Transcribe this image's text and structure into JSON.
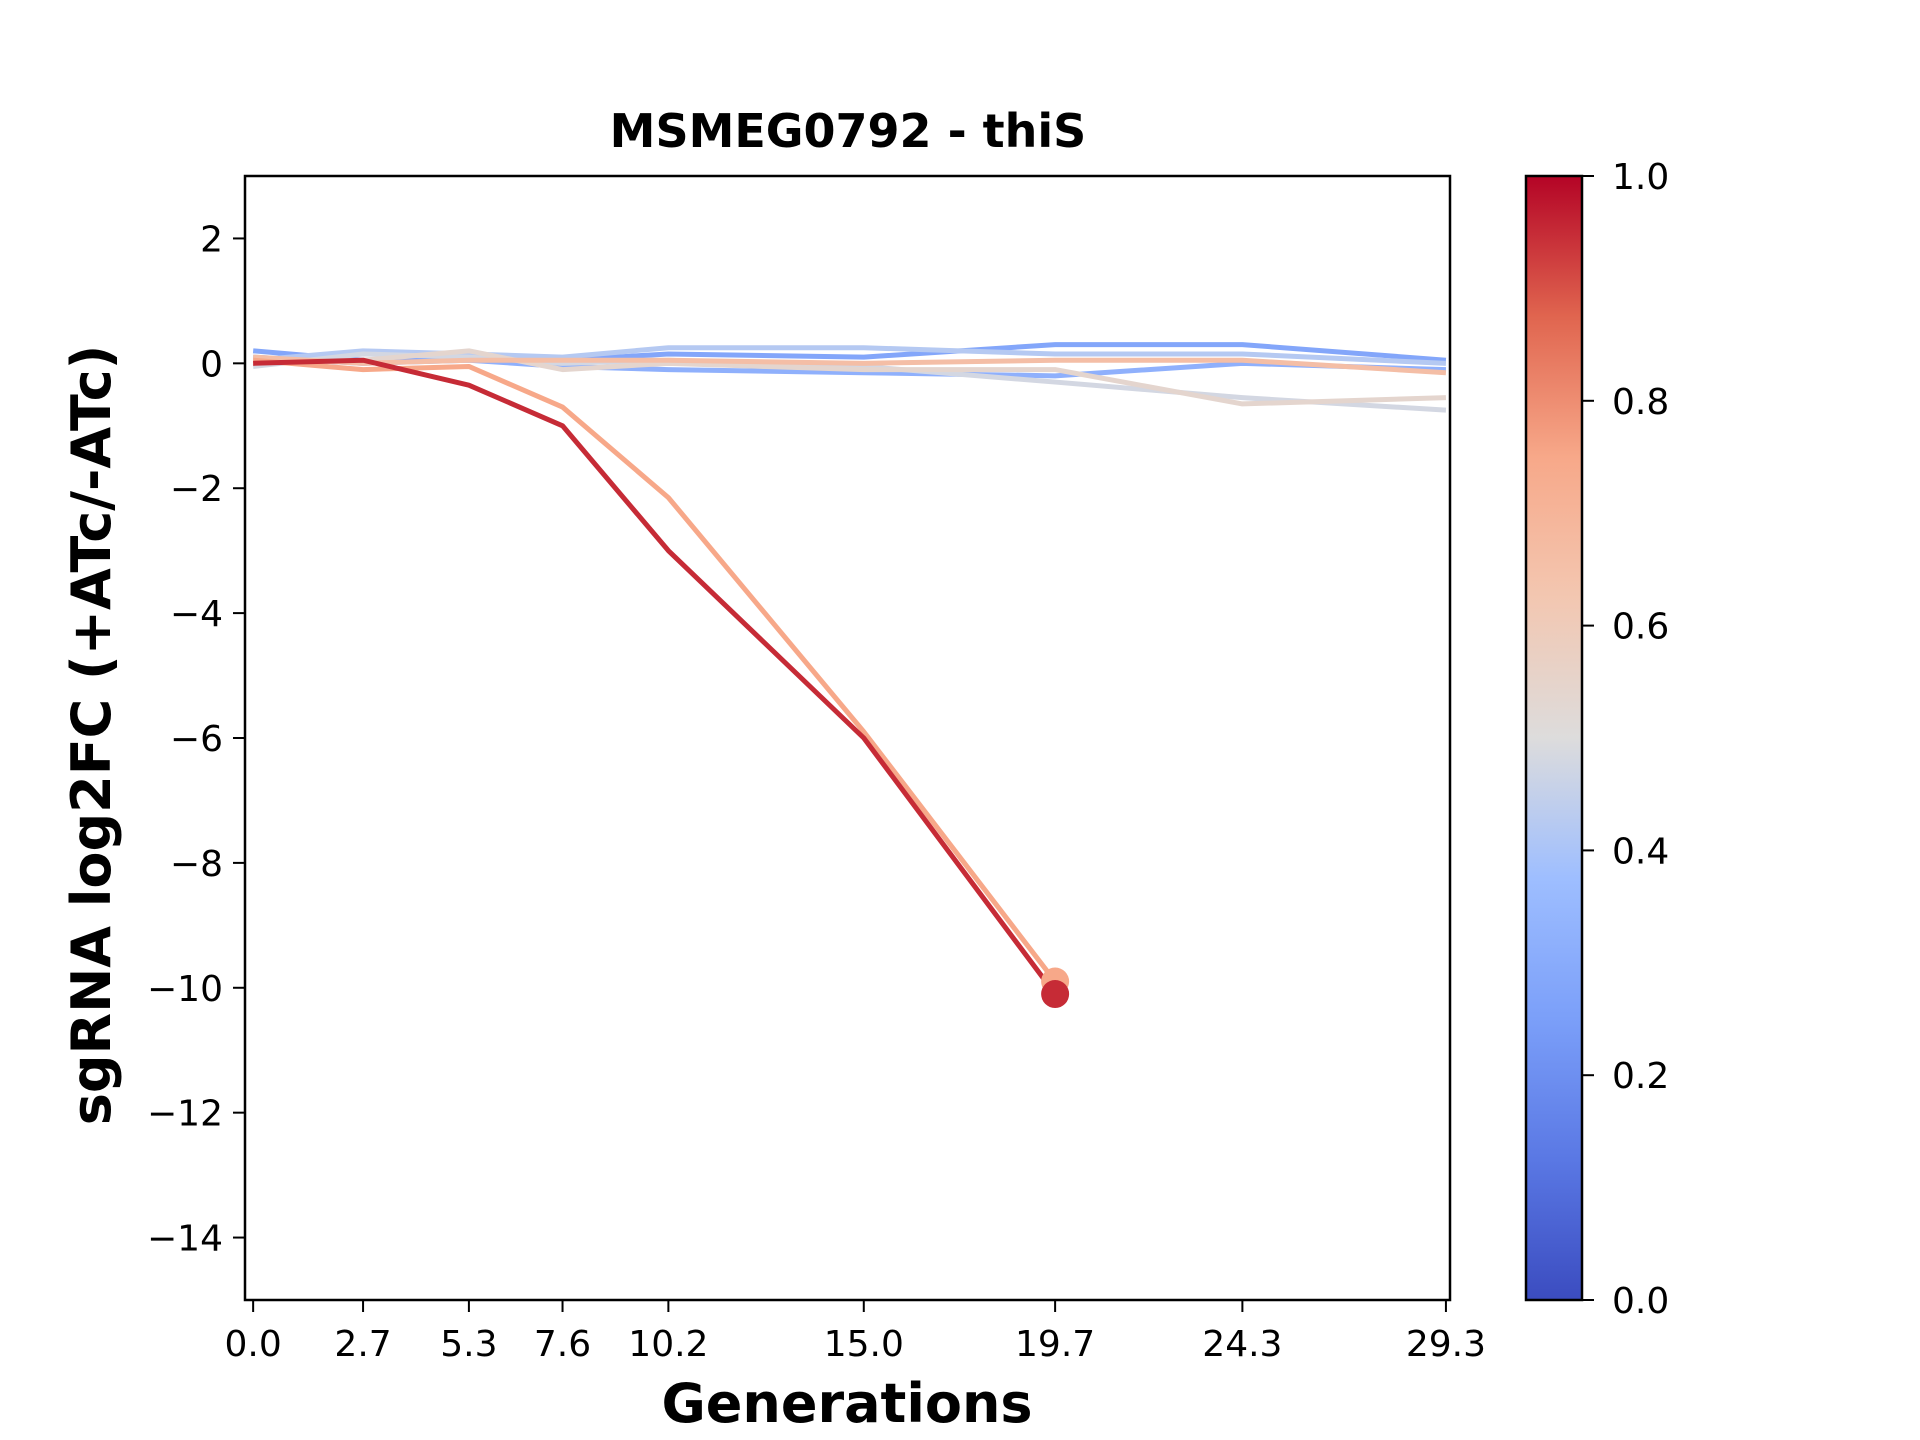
{
  "chart_data": {
    "type": "line",
    "title": "MSMEG0792 - thiS",
    "xlabel": "Generations",
    "ylabel": "sgRNA log2FC (+ATc/-ATc)",
    "x": [
      0.0,
      2.7,
      5.3,
      7.6,
      10.2,
      15.0,
      19.7,
      24.3,
      29.3
    ],
    "xticks": [
      "0.0",
      "2.7",
      "5.3",
      "7.6",
      "10.2",
      "15.0",
      "19.7",
      "24.3",
      "29.3"
    ],
    "xlim": [
      -0.2,
      29.4
    ],
    "ylim": [
      -15,
      3
    ],
    "yticks": [
      2,
      0,
      -2,
      -4,
      -6,
      -8,
      -10,
      -12,
      -14
    ],
    "ytick_labels": [
      "2",
      "0",
      "−2",
      "−4",
      "−6",
      "−8",
      "−10",
      "−12",
      "−14"
    ],
    "grid": false,
    "colorbar": {
      "colormap": "coolwarm",
      "range": [
        0.0,
        1.0
      ],
      "ticks": [
        0.0,
        0.2,
        0.4,
        0.6,
        0.8,
        1.0
      ],
      "tick_labels": [
        "0.0",
        "0.2",
        "0.4",
        "0.6",
        "0.8",
        "1.0"
      ]
    },
    "series": [
      {
        "color_value": 0.28,
        "values": [
          0.2,
          0.05,
          0.1,
          0.05,
          0.15,
          0.1,
          0.3,
          0.3,
          0.05
        ]
      },
      {
        "color_value": 0.32,
        "values": [
          0.1,
          0.0,
          0.05,
          -0.05,
          -0.1,
          -0.15,
          -0.2,
          -0.0,
          -0.1
        ]
      },
      {
        "color_value": 0.42,
        "values": [
          0.05,
          0.2,
          0.15,
          0.1,
          0.25,
          0.25,
          0.15,
          0.15,
          0.0
        ]
      },
      {
        "color_value": 0.48,
        "values": [
          -0.05,
          0.15,
          0.1,
          0.0,
          0.05,
          -0.05,
          -0.3,
          -0.55,
          -0.75
        ]
      },
      {
        "color_value": 0.54,
        "values": [
          0.0,
          0.05,
          0.2,
          -0.1,
          0.0,
          -0.1,
          -0.1,
          -0.65,
          -0.55
        ]
      },
      {
        "color_value": 0.66,
        "values": [
          0.1,
          0.0,
          0.05,
          0.05,
          0.05,
          0.0,
          0.05,
          0.05,
          -0.15
        ]
      },
      {
        "color_value": 0.75,
        "values": [
          0.05,
          -0.1,
          -0.05,
          -0.7,
          -2.15,
          -5.9,
          -9.9,
          null,
          null
        ]
      },
      {
        "color_value": 0.95,
        "values": [
          0.0,
          0.05,
          -0.35,
          -1.0,
          -3.0,
          -6.0,
          -10.1,
          null,
          null
        ]
      }
    ]
  }
}
